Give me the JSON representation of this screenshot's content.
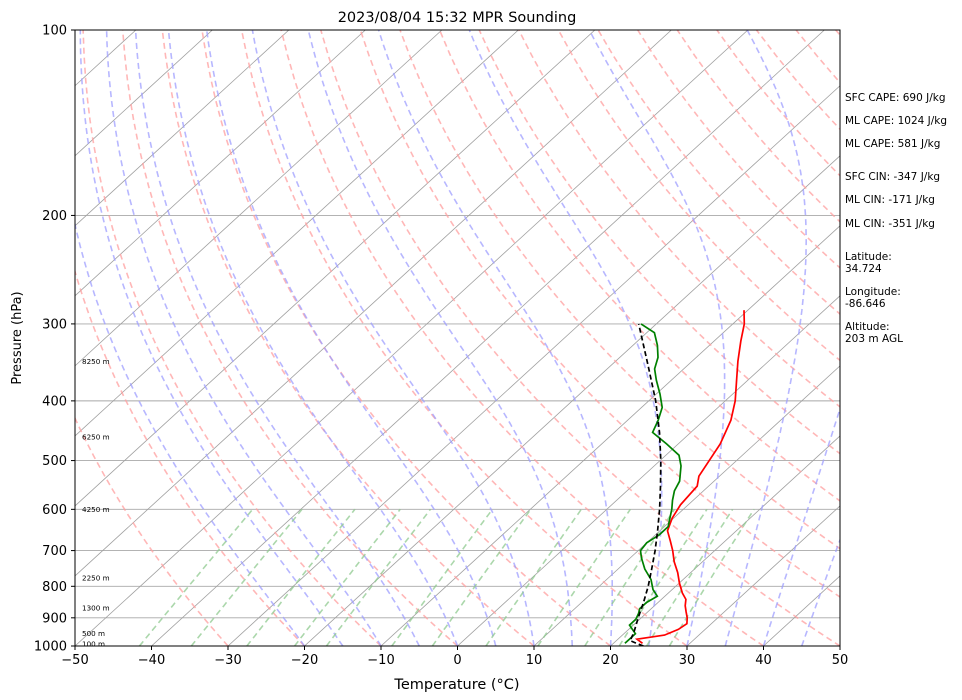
{
  "chart_data": {
    "type": "line",
    "title": "2023/08/04 15:32 MPR Sounding",
    "xlabel": "Temperature (°C)",
    "ylabel": "Pressure (hPa)",
    "xlim": [
      -50,
      50
    ],
    "ylim": [
      1000,
      100
    ],
    "y_scale": "log",
    "x_ticks": [
      -50,
      -40,
      -30,
      -20,
      -10,
      0,
      10,
      20,
      30,
      40,
      50
    ],
    "y_ticks": [
      1000,
      900,
      800,
      700,
      600,
      500,
      400,
      300,
      200,
      100
    ],
    "skew_t": true,
    "series": [
      {
        "color": "#ff0000",
        "points": [
          [
            23.8,
            990
          ],
          [
            22.5,
            975
          ],
          [
            25.5,
            960
          ],
          [
            26.5,
            940
          ],
          [
            26.8,
            920
          ],
          [
            26,
            900
          ],
          [
            25,
            880
          ],
          [
            24,
            860
          ],
          [
            23.2,
            840
          ],
          [
            21.8,
            820
          ],
          [
            20,
            790
          ],
          [
            18.3,
            760
          ],
          [
            16.3,
            730
          ],
          [
            14.5,
            700
          ],
          [
            12.8,
            675
          ],
          [
            11,
            650
          ],
          [
            9.8,
            620
          ],
          [
            9,
            590
          ],
          [
            8.5,
            550
          ],
          [
            7.3,
            530
          ],
          [
            5.5,
            470
          ],
          [
            3.5,
            430
          ],
          [
            1.3,
            400
          ],
          [
            -1.5,
            370
          ],
          [
            -4,
            345
          ],
          [
            -6.5,
            320
          ],
          [
            -8.5,
            300
          ],
          [
            -10.5,
            285
          ]
        ]
      },
      {
        "color": "#008000",
        "points": [
          [
            21.5,
            990
          ],
          [
            21.5,
            975
          ],
          [
            21.5,
            955
          ],
          [
            20.5,
            940
          ],
          [
            19.5,
            925
          ],
          [
            19.5,
            905
          ],
          [
            19,
            885
          ],
          [
            18.5,
            870
          ],
          [
            18.5,
            850
          ],
          [
            19,
            830
          ],
          [
            17.5,
            810
          ],
          [
            15.8,
            780
          ],
          [
            13.5,
            750
          ],
          [
            11.5,
            720
          ],
          [
            10.3,
            700
          ],
          [
            10,
            680
          ],
          [
            10.5,
            660
          ],
          [
            10.5,
            640
          ],
          [
            9.5,
            620
          ],
          [
            8.5,
            600
          ],
          [
            7.3,
            580
          ],
          [
            6.2,
            560
          ],
          [
            5.5,
            540
          ],
          [
            3.5,
            510
          ],
          [
            1.7,
            490
          ],
          [
            -1.5,
            470
          ],
          [
            -5,
            450
          ],
          [
            -6,
            430
          ],
          [
            -7.3,
            410
          ],
          [
            -9.5,
            390
          ],
          [
            -12,
            370
          ],
          [
            -13.8,
            355
          ],
          [
            -15,
            340
          ],
          [
            -16.8,
            325
          ],
          [
            -19,
            310
          ],
          [
            -22,
            300
          ]
        ]
      },
      {
        "color": "#000000",
        "dashed": true,
        "points": [
          [
            24.3,
            1000
          ],
          [
            23,
            990
          ],
          [
            21.8,
            980
          ],
          [
            21.1,
            950
          ],
          [
            19.6,
            900
          ],
          [
            18.1,
            850
          ],
          [
            16.4,
            800
          ],
          [
            14.4,
            750
          ],
          [
            12.2,
            700
          ],
          [
            9.7,
            650
          ],
          [
            6.9,
            600
          ],
          [
            3.7,
            550
          ],
          [
            0.1,
            500
          ],
          [
            -4.1,
            450
          ],
          [
            -9.1,
            400
          ],
          [
            -15.2,
            350
          ],
          [
            -22.3,
            300
          ]
        ]
      }
    ],
    "height_labels": [
      {
        "text": "100 m",
        "p": 993
      },
      {
        "text": "500 m",
        "p": 955
      },
      {
        "text": "1300 m",
        "p": 868
      },
      {
        "text": "2250 m",
        "p": 775
      },
      {
        "text": "4250 m",
        "p": 600
      },
      {
        "text": "6250 m",
        "p": 458
      },
      {
        "text": "8250 m",
        "p": 345
      }
    ],
    "background": {
      "isotherm_color": "#a0a0a0",
      "dry_adiabat_color": "#ff9f9f",
      "moist_adiabat_color": "#9f9fff",
      "mixing_ratio_color": "#8fc98f"
    }
  },
  "info_panel": {
    "sfc_cape": "SFC CAPE: 690 J/kg",
    "ml_cape_1": "ML CAPE: 1024 J/kg",
    "ml_cape_2": "ML CAPE: 581 J/kg",
    "sfc_cin": "SFC CIN: -347 J/kg",
    "ml_cin_1": "ML CIN: -171 J/kg",
    "ml_cin_2": "ML CIN: -351 J/kg",
    "latitude_label": "Latitude:",
    "latitude_value": "34.724",
    "longitude_label": "Longitude:",
    "longitude_value": "-86.646",
    "altitude_label": "Altitude:",
    "altitude_value": "203 m AGL"
  }
}
